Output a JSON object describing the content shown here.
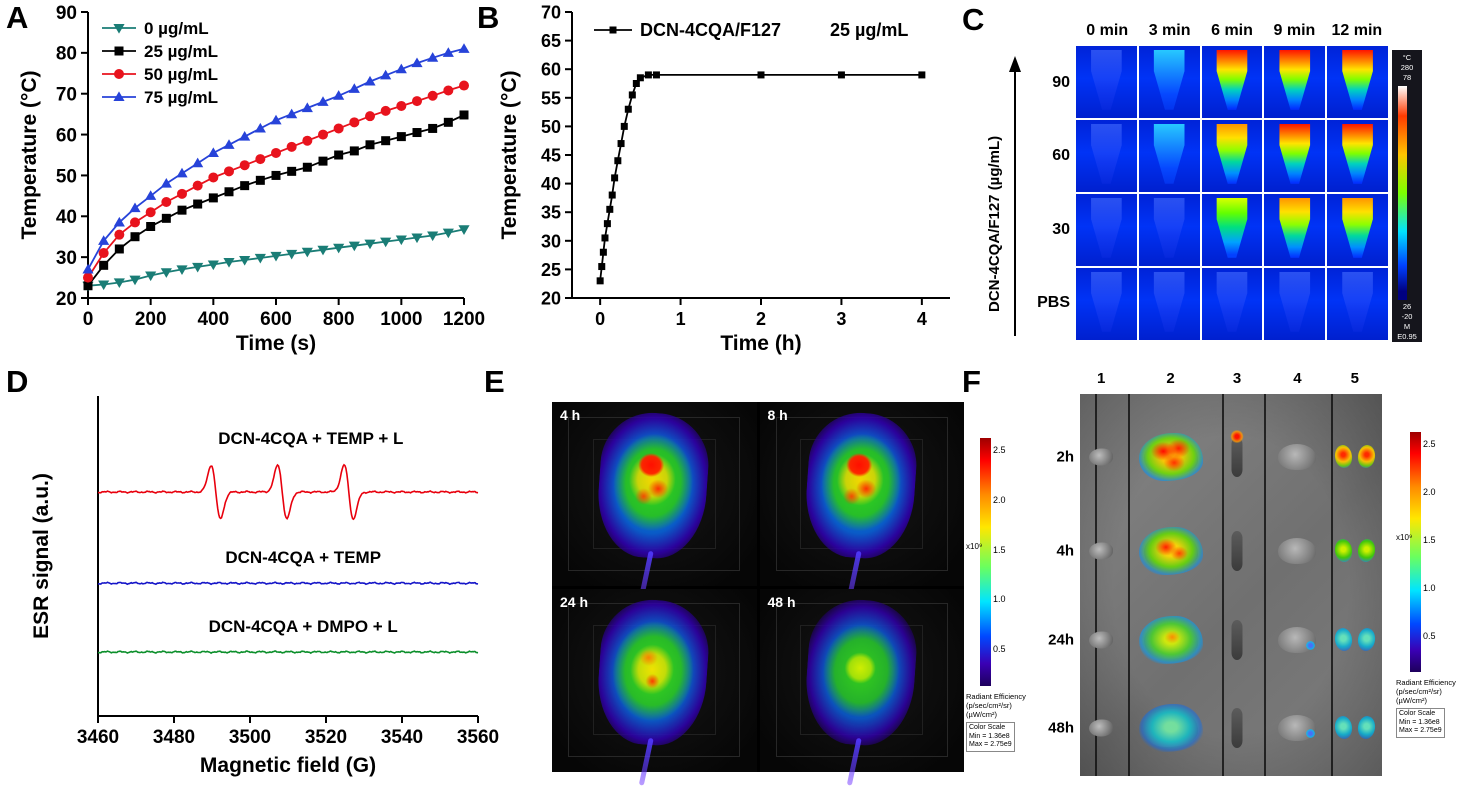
{
  "panel_letters": {
    "A": "A",
    "B": "B",
    "C": "C",
    "D": "D",
    "E": "E",
    "F": "F"
  },
  "chart_data": [
    {
      "id": "A",
      "type": "line",
      "title": "",
      "xlabel": "Time (s)",
      "ylabel": "Temperature (°C)",
      "xlim": [
        0,
        1200
      ],
      "ylim": [
        20,
        90
      ],
      "xticks": [
        0,
        200,
        400,
        600,
        800,
        1000,
        1200
      ],
      "yticks": [
        20,
        30,
        40,
        50,
        60,
        70,
        80,
        90
      ],
      "legend_position": "top-left",
      "series": [
        {
          "name": "0 µg/mL",
          "color": "#1a7d76",
          "marker": "triangle-down",
          "x": [
            0,
            50,
            100,
            150,
            200,
            250,
            300,
            350,
            400,
            450,
            500,
            550,
            600,
            650,
            700,
            750,
            800,
            850,
            900,
            950,
            1000,
            1050,
            1100,
            1150,
            1200
          ],
          "y": [
            23,
            23.3,
            23.8,
            24.5,
            25.5,
            26.3,
            27,
            27.6,
            28.2,
            28.8,
            29.3,
            29.8,
            30.3,
            30.8,
            31.3,
            31.8,
            32.3,
            32.8,
            33.3,
            33.8,
            34.3,
            34.8,
            35.3,
            36,
            36.8
          ]
        },
        {
          "name": "25 µg/mL",
          "color": "#000000",
          "marker": "square",
          "x": [
            0,
            50,
            100,
            150,
            200,
            250,
            300,
            350,
            400,
            450,
            500,
            550,
            600,
            650,
            700,
            750,
            800,
            850,
            900,
            950,
            1000,
            1050,
            1100,
            1150,
            1200
          ],
          "y": [
            23,
            28,
            32,
            35,
            37.5,
            39.5,
            41.5,
            43,
            44.5,
            46,
            47.5,
            48.8,
            50,
            51,
            52,
            53.5,
            55,
            56,
            57.5,
            58.5,
            59.5,
            60.5,
            61.5,
            63,
            64.8
          ]
        },
        {
          "name": "50 µg/mL",
          "color": "#e8131d",
          "marker": "circle",
          "x": [
            0,
            50,
            100,
            150,
            200,
            250,
            300,
            350,
            400,
            450,
            500,
            550,
            600,
            650,
            700,
            750,
            800,
            850,
            900,
            950,
            1000,
            1050,
            1100,
            1150,
            1200
          ],
          "y": [
            25,
            31,
            35.5,
            38.5,
            41,
            43.5,
            45.5,
            47.5,
            49.5,
            51,
            52.5,
            54,
            55.5,
            57,
            58.5,
            60,
            61.5,
            63,
            64.5,
            65.8,
            67,
            68.2,
            69.5,
            70.8,
            72
          ]
        },
        {
          "name": "75  µg/mL",
          "color": "#2743d9",
          "marker": "triangle-up",
          "x": [
            0,
            50,
            100,
            150,
            200,
            250,
            300,
            350,
            400,
            450,
            500,
            550,
            600,
            650,
            700,
            750,
            800,
            850,
            900,
            950,
            1000,
            1050,
            1100,
            1150,
            1200
          ],
          "y": [
            27,
            34,
            38.5,
            42,
            45,
            48,
            50.5,
            53,
            55.5,
            57.5,
            59.5,
            61.5,
            63.5,
            65,
            66.5,
            68,
            69.5,
            71.2,
            73,
            74.5,
            76,
            77.5,
            78.8,
            80,
            81
          ]
        }
      ]
    },
    {
      "id": "B",
      "type": "line",
      "title": "",
      "xlabel": "Time (h)",
      "ylabel": "Temperature (°C)",
      "xlim": [
        -0.35,
        4.35
      ],
      "ylim": [
        20,
        70
      ],
      "xticks": [
        0,
        1,
        2,
        3,
        4
      ],
      "yticks": [
        20,
        25,
        30,
        35,
        40,
        45,
        50,
        55,
        60,
        65,
        70
      ],
      "legend_name": "DCN-4CQA/F127",
      "legend_conc": "25 µg/mL",
      "series": [
        {
          "name": "DCN-4CQA/F127",
          "color": "#000000",
          "marker": "square",
          "x": [
            0,
            0.02,
            0.04,
            0.06,
            0.09,
            0.12,
            0.15,
            0.18,
            0.22,
            0.26,
            0.3,
            0.35,
            0.4,
            0.45,
            0.5,
            0.6,
            0.7,
            2,
            3,
            4
          ],
          "y": [
            23,
            25.5,
            28,
            30.5,
            33,
            35.5,
            38,
            41,
            44,
            47,
            50,
            53,
            55.5,
            57.5,
            58.5,
            59,
            59,
            59,
            59,
            59
          ]
        }
      ]
    },
    {
      "id": "D",
      "type": "line",
      "title": "",
      "xlabel": "Magnetic field (G)",
      "ylabel": "ESR signal (a.u.)",
      "xlim": [
        3460,
        3560
      ],
      "xticks": [
        3460,
        3480,
        3500,
        3520,
        3540,
        3560
      ],
      "series": [
        {
          "name": "DCN-4CQA + TEMP + L",
          "color": "#e8000d",
          "baseline": 0.3,
          "peaks": [
            3491,
            3508.5,
            3526
          ],
          "peak_amp": 27,
          "peak_width": 1.2,
          "label_x": 3516,
          "label_dy": 48
        },
        {
          "name": "DCN-4CQA + TEMP",
          "color": "#1515c8",
          "baseline": 0.585,
          "peaks": [],
          "peak_amp": 0,
          "peak_width": 1,
          "label_x": 3514,
          "label_dy": 20
        },
        {
          "name": "DCN-4CQA + DMPO + L",
          "color": "#0c8f2b",
          "baseline": 0.8,
          "peaks": [],
          "peak_amp": 0,
          "peak_width": 1,
          "label_x": 3514,
          "label_dy": 20
        }
      ]
    }
  ],
  "panelC": {
    "col_headers": [
      "0 min",
      "3 min",
      "6 min",
      "9 min",
      "12 min"
    ],
    "row_labels": [
      "90",
      "60",
      "30",
      "PBS"
    ],
    "axis_label": "DCN-4CQA/F127 (µg/mL)",
    "heat_levels": [
      [
        0,
        1,
        4,
        4,
        4
      ],
      [
        0,
        1,
        3,
        4,
        4
      ],
      [
        0,
        0,
        2,
        3,
        3
      ],
      [
        0,
        0,
        0,
        0,
        0
      ]
    ],
    "colorbar_top": [
      "°C",
      "280",
      "78"
    ],
    "colorbar_bottom": [
      "26",
      "-20",
      "M",
      "E0.95"
    ]
  },
  "panelE": {
    "cells": [
      {
        "label": "4 h",
        "signal": "high"
      },
      {
        "label": "8 h",
        "signal": "high"
      },
      {
        "label": "24 h",
        "signal": "med"
      },
      {
        "label": "48 h",
        "signal": "low"
      }
    ],
    "colorbar": {
      "ticks": [
        "2.5",
        "2.0",
        "1.5",
        "1.0",
        "0.5"
      ],
      "multiplier": "x10⁹",
      "title": "Radiant Efficiency",
      "units": [
        "(p/sec/cm²/sr)",
        "(µW/cm²)"
      ],
      "scale": [
        "Color Scale",
        "Min = 1.36e8",
        "Max = 2.75e9"
      ]
    }
  },
  "panelF": {
    "col_headers": [
      "1",
      "2",
      "3",
      "4",
      "5"
    ],
    "row_labels": [
      "2h",
      "4h",
      "24h",
      "48h"
    ],
    "cells": [
      [
        {
          "organ": "heart",
          "heat": 0
        },
        {
          "organ": "liver",
          "heat": 4
        },
        {
          "organ": "spleen",
          "heat": 0,
          "dot": true
        },
        {
          "organ": "lung",
          "heat": 0
        },
        {
          "organ": "kidney",
          "heat": 3
        }
      ],
      [
        {
          "organ": "heart",
          "heat": 0
        },
        {
          "organ": "liver",
          "heat": 3
        },
        {
          "organ": "spleen",
          "heat": 0
        },
        {
          "organ": "lung",
          "heat": 0
        },
        {
          "organ": "kidney",
          "heat": 2
        }
      ],
      [
        {
          "organ": "heart",
          "heat": 0
        },
        {
          "organ": "liver",
          "heat": 2
        },
        {
          "organ": "spleen",
          "heat": 0
        },
        {
          "organ": "lung",
          "heat": 0,
          "speck": true
        },
        {
          "organ": "kidney",
          "heat": 1
        }
      ],
      [
        {
          "organ": "heart",
          "heat": 0
        },
        {
          "organ": "liver",
          "heat": 1
        },
        {
          "organ": "spleen",
          "heat": 0
        },
        {
          "organ": "lung",
          "heat": 0,
          "speck": true
        },
        {
          "organ": "kidney",
          "heat": 1
        }
      ]
    ],
    "colorbar": {
      "ticks": [
        "2.5",
        "2.0",
        "1.5",
        "1.0",
        "0.5"
      ],
      "multiplier": "x10⁹",
      "title": "Radiant Efficiency",
      "units": [
        "(p/sec/cm²/sr)",
        "(µW/cm²)"
      ],
      "scale": [
        "Color Scale",
        "Min = 1.36e8",
        "Max = 2.75e9"
      ]
    }
  }
}
